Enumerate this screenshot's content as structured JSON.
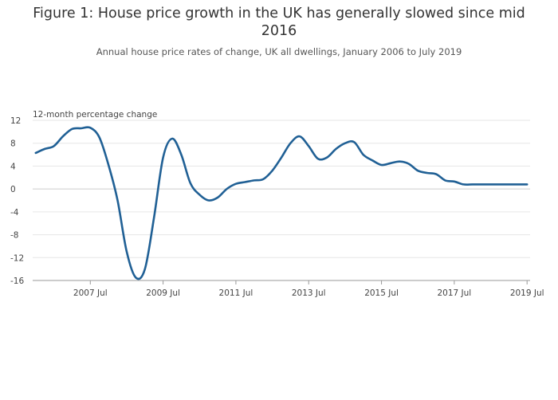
{
  "chart_data": {
    "type": "line",
    "title": "Figure 1: House price growth in the UK has generally slowed since mid 2016",
    "subtitle": "Annual house price rates of change, UK all dwellings, January 2006 to July 2019",
    "ylabel": "12-month percentage change",
    "xlabel": "",
    "ylim": [
      -16,
      12
    ],
    "yticks": [
      12,
      8,
      4,
      0,
      -4,
      -8,
      -12,
      -16
    ],
    "ytick_labels": [
      "12",
      "8",
      "4",
      "0",
      "-4",
      "-8",
      "-12",
      "-16"
    ],
    "xticks": [
      "2007-07",
      "2009-07",
      "2011-07",
      "2013-07",
      "2015-07",
      "2017-07",
      "2019-07"
    ],
    "xtick_labels": [
      "2007 Jul",
      "2009 Jul",
      "2011 Jul",
      "2013 Jul",
      "2015 Jul",
      "2017 Jul",
      "2019 Jul"
    ],
    "xlim": [
      "2006-01",
      "2019-07"
    ],
    "grid": true,
    "line_color": "#206095",
    "series": [
      {
        "x": [
          "2006-01",
          "2006-04",
          "2006-07",
          "2006-10",
          "2007-01",
          "2007-04",
          "2007-07",
          "2007-10",
          "2008-01",
          "2008-04",
          "2008-07",
          "2008-10",
          "2009-01",
          "2009-04",
          "2009-07",
          "2009-10",
          "2010-01",
          "2010-04",
          "2010-07",
          "2010-10",
          "2011-01",
          "2011-04",
          "2011-07",
          "2011-10",
          "2012-01",
          "2012-04",
          "2012-07",
          "2012-10",
          "2013-01",
          "2013-04",
          "2013-07",
          "2013-10",
          "2014-01",
          "2014-04",
          "2014-07",
          "2014-10",
          "2015-01",
          "2015-04",
          "2015-07",
          "2015-10",
          "2016-01",
          "2016-04",
          "2016-07",
          "2016-10",
          "2017-01",
          "2017-04",
          "2017-07",
          "2017-10",
          "2018-01",
          "2018-04",
          "2018-07",
          "2018-10",
          "2019-01",
          "2019-04",
          "2019-07"
        ],
        "values": [
          6.3,
          7.0,
          7.5,
          9.2,
          10.5,
          10.6,
          10.7,
          9.0,
          4.2,
          -2.0,
          -11.0,
          -15.5,
          -14.0,
          -5.0,
          5.5,
          8.8,
          6.0,
          1.0,
          -1.0,
          -2.0,
          -1.5,
          0.0,
          0.9,
          1.2,
          1.5,
          1.7,
          3.2,
          5.5,
          8.0,
          9.2,
          7.5,
          5.3,
          5.5,
          7.0,
          8.0,
          8.2,
          6.0,
          5.0,
          4.2,
          4.5,
          4.8,
          4.4,
          3.2,
          2.8,
          2.6,
          1.5,
          1.3,
          0.8,
          0.8,
          0.8,
          0.8,
          0.8,
          0.8,
          0.8,
          0.8
        ]
      }
    ]
  }
}
